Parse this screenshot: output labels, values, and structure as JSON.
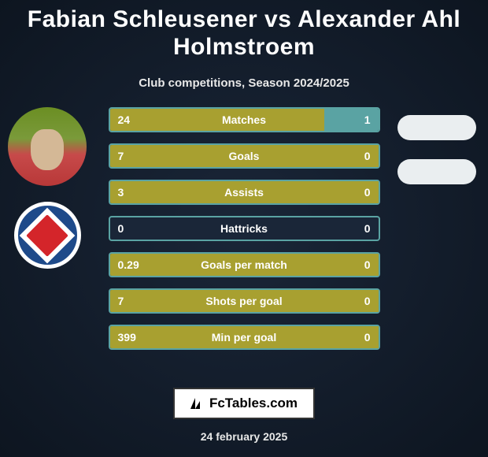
{
  "header": {
    "title": "Fabian Schleusener vs Alexander Ahl Holmstroem",
    "subtitle": "Club competitions, Season 2024/2025"
  },
  "colors": {
    "p1_fill": "#a8a030",
    "p2_fill": "#5aa3a3",
    "border": "#5aa3a3",
    "bg": "#1a2638"
  },
  "stats": [
    {
      "label": "Matches",
      "p1": "24",
      "p2": "1",
      "p1_width": 80,
      "p2_width": 20
    },
    {
      "label": "Goals",
      "p1": "7",
      "p2": "0",
      "p1_width": 100,
      "p2_width": 0
    },
    {
      "label": "Assists",
      "p1": "3",
      "p2": "0",
      "p1_width": 100,
      "p2_width": 0
    },
    {
      "label": "Hattricks",
      "p1": "0",
      "p2": "0",
      "p1_width": 0,
      "p2_width": 0
    },
    {
      "label": "Goals per match",
      "p1": "0.29",
      "p2": "0",
      "p1_width": 100,
      "p2_width": 0
    },
    {
      "label": "Shots per goal",
      "p1": "7",
      "p2": "0",
      "p1_width": 100,
      "p2_width": 0
    },
    {
      "label": "Min per goal",
      "p1": "399",
      "p2": "0",
      "p1_width": 100,
      "p2_width": 0
    }
  ],
  "footer": {
    "brand": "FcTables.com",
    "date": "24 february 2025"
  }
}
